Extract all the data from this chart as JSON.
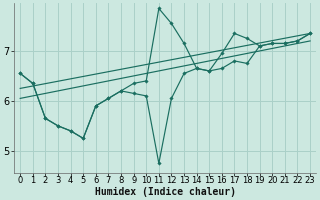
{
  "xlabel": "Humidex (Indice chaleur)",
  "ylabel": "",
  "bg_color": "#cce8e0",
  "grid_color": "#aad0c8",
  "line_color": "#1a6e60",
  "xlim": [
    -0.5,
    23.5
  ],
  "ylim": [
    4.55,
    7.95
  ],
  "xticks": [
    0,
    1,
    2,
    3,
    4,
    5,
    6,
    7,
    8,
    9,
    10,
    11,
    12,
    13,
    14,
    15,
    16,
    17,
    18,
    19,
    20,
    21,
    22,
    23
  ],
  "yticks": [
    5,
    6,
    7
  ],
  "series1_x": [
    0,
    1,
    2,
    3,
    4,
    5,
    6,
    7,
    8,
    9,
    10,
    11,
    12,
    13,
    14,
    15,
    16,
    17,
    18,
    19,
    20,
    21,
    22,
    23
  ],
  "series1_y": [
    6.55,
    6.35,
    5.65,
    5.5,
    5.4,
    5.25,
    5.9,
    6.05,
    6.2,
    6.15,
    6.1,
    4.75,
    6.05,
    6.55,
    6.65,
    6.6,
    6.65,
    6.8,
    6.75,
    7.1,
    7.15,
    7.15,
    7.2,
    7.35
  ],
  "series2_x": [
    0,
    1,
    2,
    3,
    4,
    5,
    6,
    7,
    8,
    9,
    10,
    11,
    12,
    13,
    14,
    15,
    16,
    17,
    18,
    19,
    20,
    21,
    22,
    23
  ],
  "series2_y": [
    6.55,
    6.35,
    5.65,
    5.5,
    5.4,
    5.25,
    5.9,
    6.05,
    6.2,
    6.35,
    6.4,
    7.85,
    7.55,
    7.15,
    6.65,
    6.6,
    6.95,
    7.35,
    7.25,
    7.1,
    7.15,
    7.15,
    7.2,
    7.35
  ],
  "trend1_x": [
    0,
    23
  ],
  "trend1_y": [
    6.25,
    7.35
  ],
  "trend2_x": [
    0,
    23
  ],
  "trend2_y": [
    6.05,
    7.2
  ],
  "fontsize_label": 7,
  "fontsize_tick": 6
}
